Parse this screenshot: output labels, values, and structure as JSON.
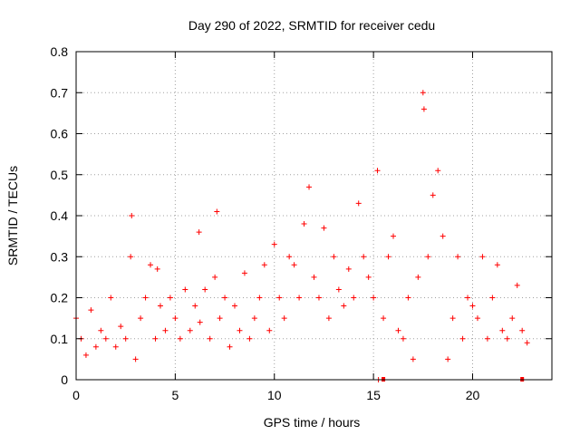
{
  "chart_data": {
    "type": "scatter",
    "title": "Day 290 of 2022, SRMTID for receiver cedu",
    "xlabel": "GPS time / hours",
    "ylabel": "SRMTID / TECUs",
    "xlim": [
      0,
      24
    ],
    "ylim": [
      0,
      0.8
    ],
    "xticks": [
      0,
      5,
      10,
      15,
      20
    ],
    "xtick_labels": [
      "0",
      "5",
      "10",
      "15",
      "20"
    ],
    "yticks": [
      0,
      0.1,
      0.2,
      0.3,
      0.4,
      0.5,
      0.6,
      0.7,
      0.8
    ],
    "ytick_labels": [
      "0",
      "0.1",
      "0.2",
      "0.3",
      "0.4",
      "0.5",
      "0.6",
      "0.7",
      "0.8"
    ],
    "grid": true,
    "marker": "+",
    "marker_color": "#ff0000",
    "series": [
      {
        "name": "SRMTID",
        "x": [
          0.0,
          0.25,
          0.5,
          0.75,
          1.0,
          1.25,
          1.5,
          1.75,
          2.0,
          2.25,
          2.5,
          2.75,
          2.8,
          3.0,
          3.25,
          3.5,
          3.75,
          4.0,
          4.1,
          4.25,
          4.5,
          4.75,
          5.0,
          5.25,
          5.5,
          5.75,
          6.0,
          6.2,
          6.25,
          6.5,
          6.75,
          7.0,
          7.1,
          7.25,
          7.5,
          7.75,
          8.0,
          8.25,
          8.5,
          8.75,
          9.0,
          9.25,
          9.5,
          9.75,
          10.0,
          10.25,
          10.5,
          10.75,
          11.0,
          11.25,
          11.5,
          11.75,
          12.0,
          12.25,
          12.5,
          12.75,
          13.0,
          13.25,
          13.5,
          13.75,
          14.0,
          14.25,
          14.5,
          14.75,
          15.0,
          15.2,
          15.25,
          15.5,
          15.75,
          16.0,
          16.25,
          16.5,
          16.75,
          17.0,
          17.25,
          17.5,
          17.55,
          17.75,
          18.0,
          18.25,
          18.5,
          18.75,
          19.0,
          19.25,
          19.5,
          19.75,
          20.0,
          20.25,
          20.5,
          20.75,
          21.0,
          21.25,
          21.5,
          21.75,
          22.0,
          22.25,
          22.5,
          22.75
        ],
        "y": [
          0.15,
          0.1,
          0.06,
          0.17,
          0.08,
          0.12,
          0.1,
          0.2,
          0.08,
          0.13,
          0.1,
          0.3,
          0.4,
          0.05,
          0.15,
          0.2,
          0.28,
          0.1,
          0.27,
          0.18,
          0.12,
          0.2,
          0.15,
          0.1,
          0.22,
          0.12,
          0.18,
          0.36,
          0.14,
          0.22,
          0.1,
          0.25,
          0.41,
          0.15,
          0.2,
          0.08,
          0.18,
          0.12,
          0.26,
          0.1,
          0.15,
          0.2,
          0.28,
          0.12,
          0.33,
          0.2,
          0.15,
          0.3,
          0.28,
          0.2,
          0.38,
          0.47,
          0.25,
          0.2,
          0.37,
          0.15,
          0.3,
          0.22,
          0.18,
          0.27,
          0.2,
          0.43,
          0.3,
          0.25,
          0.2,
          0.51,
          0.0,
          0.15,
          0.3,
          0.35,
          0.12,
          0.1,
          0.2,
          0.05,
          0.25,
          0.7,
          0.66,
          0.3,
          0.45,
          0.51,
          0.35,
          0.05,
          0.15,
          0.3,
          0.1,
          0.2,
          0.18,
          0.15,
          0.3,
          0.1,
          0.2,
          0.28,
          0.12,
          0.1,
          0.15,
          0.23,
          0.12,
          0.09
        ]
      }
    ],
    "bottom_markers_x": [
      15.5,
      22.5
    ]
  }
}
